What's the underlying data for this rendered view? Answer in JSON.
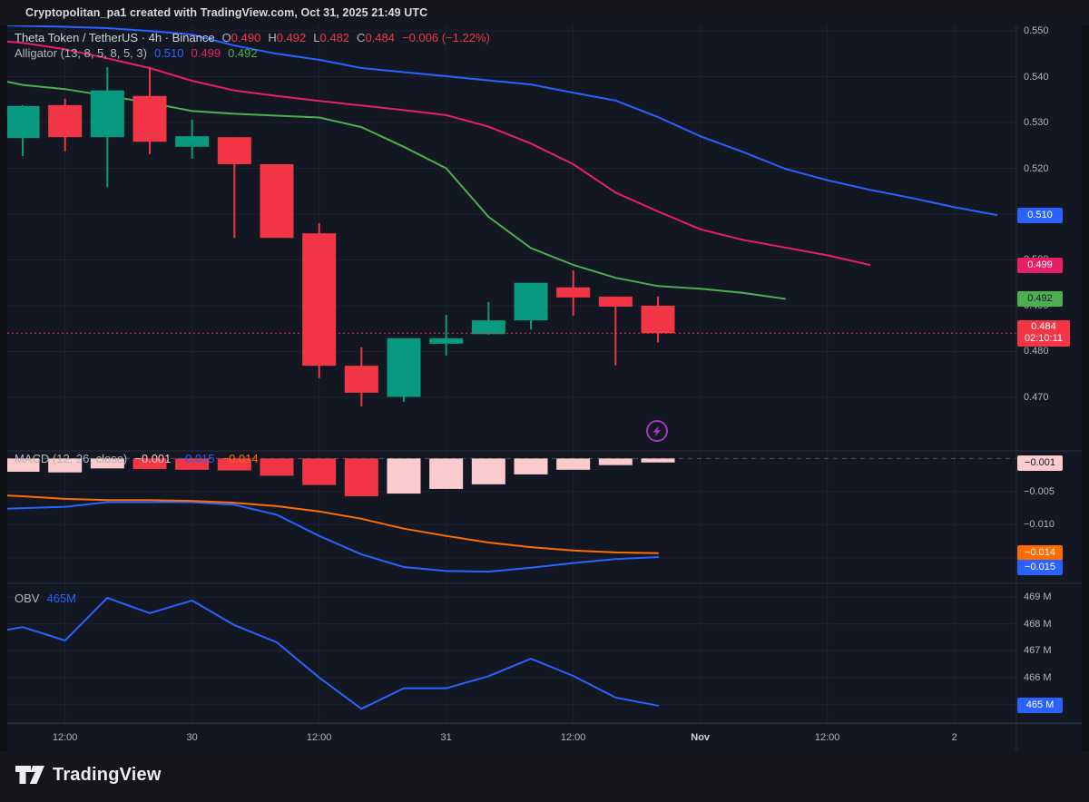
{
  "header": {
    "title": "Cryptopolitan_pa1 created with TradingView.com, Oct 31, 2025 21:49 UTC"
  },
  "footer": {
    "brand": "TradingView"
  },
  "colors": {
    "bg": "#131722",
    "grid": "#1d2230",
    "border": "#2a2e39",
    "text": "#b2b5be",
    "text_bright": "#d1d4dc",
    "up": "#089981",
    "down": "#f23645",
    "jaw": "#2962ff",
    "teeth": "#e91e63",
    "lips": "#4caf50",
    "macd": "#2962ff",
    "signal": "#ff6d00",
    "hist_down": "#f23645",
    "hist_up": "#fccbcd",
    "obv": "#2962ff",
    "zero_line": "#50535e",
    "watermark": "#a634c4",
    "badge_text_dark": "#131722"
  },
  "legend": {
    "symbol": "Theta Token / TetherUS · 4h · Binance",
    "ohlc": {
      "o_label": "O",
      "o": "0.490",
      "h_label": "H",
      "h": "0.492",
      "l_label": "L",
      "l": "0.482",
      "c_label": "C",
      "c": "0.484",
      "change": "−0.006 (−1.22%)"
    },
    "alligator": {
      "title": "Alligator (13, 8, 5, 8, 5, 3)",
      "jaw": "0.510",
      "teeth": "0.499",
      "lips": "0.492"
    },
    "macd": {
      "title": "MACD (12, 26, close)",
      "hist": "−0.001",
      "macd": "−0.015",
      "signal": "−0.014"
    },
    "obv": {
      "title": "OBV",
      "value": "465M"
    }
  },
  "chart_data": {
    "type": "candlestick",
    "title": "Theta Token / TetherUS, 4h, Binance",
    "x_axis": {
      "labels": [
        {
          "label": "12:00",
          "k": 1
        },
        {
          "label": "30",
          "k": 4
        },
        {
          "label": "12:00",
          "k": 7
        },
        {
          "label": "31",
          "k": 10
        },
        {
          "label": "12:00",
          "k": 13
        },
        {
          "label": "Nov",
          "k": 16,
          "major": true
        },
        {
          "label": "12:00",
          "k": 19
        },
        {
          "label": "2",
          "k": 22
        }
      ]
    },
    "panes": {
      "price": {
        "ylim": [
          0.4583,
          0.5512
        ],
        "grid_values": [
          0.55,
          0.54,
          0.53,
          0.52,
          0.51,
          0.5,
          0.49,
          0.48,
          0.47
        ],
        "axis_ticks": [
          {
            "label": "0.550",
            "v": 0.55
          },
          {
            "label": "0.540",
            "v": 0.54
          },
          {
            "label": "0.530",
            "v": 0.53
          },
          {
            "label": "0.520",
            "v": 0.52
          },
          {
            "label": "0.510",
            "v": 0.51
          },
          {
            "label": "0.500",
            "v": 0.5
          },
          {
            "label": "0.490",
            "v": 0.49
          },
          {
            "label": "0.480",
            "v": 0.48
          },
          {
            "label": "0.470",
            "v": 0.47
          }
        ],
        "candles": [
          {
            "t": "Oct 29 08:00",
            "o": 0.5266,
            "h": 0.5338,
            "l": 0.5227,
            "c": 0.5336
          },
          {
            "t": "Oct 29 12:00",
            "o": 0.5338,
            "h": 0.5352,
            "l": 0.5237,
            "c": 0.5268
          },
          {
            "t": "Oct 29 16:00",
            "o": 0.5268,
            "h": 0.5421,
            "l": 0.5159,
            "c": 0.537
          },
          {
            "t": "Oct 29 20:00",
            "o": 0.5358,
            "h": 0.5421,
            "l": 0.5231,
            "c": 0.5258
          },
          {
            "t": "Oct 30 00:00",
            "o": 0.5247,
            "h": 0.5306,
            "l": 0.5221,
            "c": 0.527
          },
          {
            "t": "Oct 30 04:00",
            "o": 0.5268,
            "h": 0.5268,
            "l": 0.5048,
            "c": 0.5209
          },
          {
            "t": "Oct 30 08:00",
            "o": 0.5209,
            "h": 0.5209,
            "l": 0.5048,
            "c": 0.5048
          },
          {
            "t": "Oct 30 12:00",
            "o": 0.5058,
            "h": 0.508,
            "l": 0.4742,
            "c": 0.4769
          },
          {
            "t": "Oct 30 16:00",
            "o": 0.4769,
            "h": 0.4809,
            "l": 0.468,
            "c": 0.471
          },
          {
            "t": "Oct 30 20:00",
            "o": 0.4701,
            "h": 0.4829,
            "l": 0.469,
            "c": 0.4829
          },
          {
            "t": "Oct 31 00:00",
            "o": 0.4817,
            "h": 0.488,
            "l": 0.4791,
            "c": 0.4829
          },
          {
            "t": "Oct 31 04:00",
            "o": 0.4838,
            "h": 0.4908,
            "l": 0.4837,
            "c": 0.4868
          },
          {
            "t": "Oct 31 08:00",
            "o": 0.4868,
            "h": 0.495,
            "l": 0.4848,
            "c": 0.495
          },
          {
            "t": "Oct 31 12:00",
            "o": 0.494,
            "h": 0.4977,
            "l": 0.4878,
            "c": 0.4918
          },
          {
            "t": "Oct 31 16:00",
            "o": 0.492,
            "h": 0.492,
            "l": 0.477,
            "c": 0.4898
          },
          {
            "t": "Oct 31 20:00",
            "o": 0.49,
            "h": 0.492,
            "l": 0.482,
            "c": 0.484
          }
        ],
        "alligator": {
          "jaw": [
            [
              -0.36,
              0.5512
            ],
            [
              0,
              0.5511
            ],
            [
              1,
              0.5509
            ],
            [
              2,
              0.5506
            ],
            [
              3,
              0.55
            ],
            [
              4,
              0.5492
            ],
            [
              5,
              0.5468
            ],
            [
              6,
              0.545
            ],
            [
              7,
              0.5437
            ],
            [
              8,
              0.5419
            ],
            [
              9,
              0.541
            ],
            [
              10,
              0.5401
            ],
            [
              11,
              0.5392
            ],
            [
              12,
              0.5383
            ],
            [
              13,
              0.5365
            ],
            [
              14,
              0.5348
            ],
            [
              15,
              0.5312
            ],
            [
              16,
              0.527
            ],
            [
              17,
              0.5236
            ],
            [
              18,
              0.5199
            ],
            [
              19,
              0.5174
            ],
            [
              20,
              0.5153
            ],
            [
              21,
              0.5135
            ],
            [
              22,
              0.5115
            ],
            [
              23,
              0.5098
            ]
          ],
          "teeth": [
            [
              -0.36,
              0.5477
            ],
            [
              0,
              0.5474
            ],
            [
              1,
              0.546
            ],
            [
              2,
              0.544
            ],
            [
              3,
              0.5419
            ],
            [
              4,
              0.5391
            ],
            [
              5,
              0.537
            ],
            [
              6,
              0.5358
            ],
            [
              7,
              0.5347
            ],
            [
              8,
              0.5337
            ],
            [
              9,
              0.5327
            ],
            [
              10,
              0.5316
            ],
            [
              11,
              0.5291
            ],
            [
              12,
              0.5254
            ],
            [
              13,
              0.5209
            ],
            [
              14,
              0.5147
            ],
            [
              15,
              0.5106
            ],
            [
              16,
              0.5067
            ],
            [
              17,
              0.5044
            ],
            [
              18,
              0.5027
            ],
            [
              19,
              0.501
            ],
            [
              20,
              0.4989
            ]
          ],
          "lips": [
            [
              -0.36,
              0.5389
            ],
            [
              0,
              0.5382
            ],
            [
              1,
              0.5373
            ],
            [
              2,
              0.5358
            ],
            [
              3,
              0.5343
            ],
            [
              4,
              0.5325
            ],
            [
              5,
              0.5319
            ],
            [
              6,
              0.5315
            ],
            [
              7,
              0.5311
            ],
            [
              8,
              0.529
            ],
            [
              9,
              0.5247
            ],
            [
              10,
              0.52
            ],
            [
              11,
              0.5094
            ],
            [
              12,
              0.5026
            ],
            [
              13,
              0.4989
            ],
            [
              14,
              0.4961
            ],
            [
              15,
              0.4943
            ],
            [
              16,
              0.4937
            ],
            [
              17,
              0.4928
            ],
            [
              18,
              0.4915
            ]
          ]
        },
        "last_price": 0.484,
        "countdown": "02:10:11",
        "badges": [
          {
            "label": "0.510",
            "v": 0.5098,
            "bg": "jaw",
            "fg": "light"
          },
          {
            "label": "0.499",
            "v": 0.4989,
            "bg": "teeth",
            "fg": "light"
          },
          {
            "label": "0.492",
            "v": 0.4915,
            "bg": "lips",
            "fg": "dark"
          }
        ]
      },
      "macd": {
        "ylim": [
          -0.01887,
          0.00115
        ],
        "grid_values": [
          -0.005,
          -0.01,
          -0.015
        ],
        "axis_ticks": [
          {
            "label": "−0.005",
            "v": -0.005
          },
          {
            "label": "−0.010",
            "v": -0.01
          }
        ],
        "hist": [
          -0.002,
          -0.0021,
          -0.0015,
          -0.0016,
          -0.0017,
          -0.0018,
          -0.0026,
          -0.004,
          -0.0057,
          -0.0053,
          -0.0046,
          -0.0039,
          -0.0024,
          -0.0017,
          -0.001,
          -0.0006
        ],
        "hist_colors": [
          "pink",
          "pink",
          "pink",
          "red",
          "red",
          "red",
          "red",
          "red",
          "red",
          "pink",
          "pink",
          "pink",
          "pink",
          "pink",
          "pink",
          "pink"
        ],
        "macd_line": [
          [
            -0.36,
            -0.0076
          ],
          [
            0,
            -0.0075
          ],
          [
            1,
            -0.0073
          ],
          [
            2,
            -0.0066
          ],
          [
            3,
            -0.0066
          ],
          [
            4,
            -0.0066
          ],
          [
            5,
            -0.007
          ],
          [
            6,
            -0.0085
          ],
          [
            7,
            -0.0117
          ],
          [
            8,
            -0.0145
          ],
          [
            9,
            -0.0164
          ],
          [
            10,
            -0.017
          ],
          [
            11,
            -0.0171
          ],
          [
            12,
            -0.0165
          ],
          [
            13,
            -0.0158
          ],
          [
            14,
            -0.0152
          ],
          [
            15,
            -0.0149
          ]
        ],
        "signal_line": [
          [
            -0.36,
            -0.0056
          ],
          [
            0,
            -0.0057
          ],
          [
            1,
            -0.0061
          ],
          [
            2,
            -0.0063
          ],
          [
            3,
            -0.0063
          ],
          [
            4,
            -0.0064
          ],
          [
            5,
            -0.0067
          ],
          [
            6,
            -0.0072
          ],
          [
            7,
            -0.008
          ],
          [
            8,
            -0.0091
          ],
          [
            9,
            -0.0106
          ],
          [
            10,
            -0.0117
          ],
          [
            11,
            -0.0127
          ],
          [
            12,
            -0.0134
          ],
          [
            13,
            -0.0139
          ],
          [
            14,
            -0.0142
          ],
          [
            15,
            -0.0143
          ]
        ],
        "badges": [
          {
            "label": "−0.001",
            "v": -0.0007,
            "bg": "hist_up",
            "fg": "dark"
          },
          {
            "label": "−0.014",
            "v": -0.0143,
            "bg": "signal",
            "fg": "light"
          },
          {
            "label": "−0.015",
            "v": -0.0149,
            "bg": "macd",
            "fg": "light",
            "avoid": true
          }
        ]
      },
      "obv": {
        "ylim": [
          464.3,
          469.51
        ],
        "grid_values": [
          469,
          468,
          467,
          466,
          465
        ],
        "axis_ticks": [
          {
            "label": "469 M",
            "v": 469
          },
          {
            "label": "468 M",
            "v": 468
          },
          {
            "label": "467 M",
            "v": 467
          },
          {
            "label": "466 M",
            "v": 466
          }
        ],
        "points": [
          [
            -0.36,
            467.78
          ],
          [
            0,
            467.88
          ],
          [
            1,
            467.38
          ],
          [
            2,
            468.97
          ],
          [
            3,
            468.4
          ],
          [
            4,
            468.87
          ],
          [
            5,
            467.95
          ],
          [
            6,
            467.31
          ],
          [
            7,
            466.0
          ],
          [
            8,
            464.83
          ],
          [
            9,
            465.6
          ],
          [
            10,
            465.6
          ],
          [
            11,
            466.05
          ],
          [
            12,
            466.7
          ],
          [
            13,
            466.06
          ],
          [
            14,
            465.25
          ],
          [
            15,
            464.95
          ]
        ],
        "badges": [
          {
            "label": "465 M",
            "v": 464.95,
            "bg": "obv",
            "fg": "light"
          }
        ]
      }
    }
  }
}
